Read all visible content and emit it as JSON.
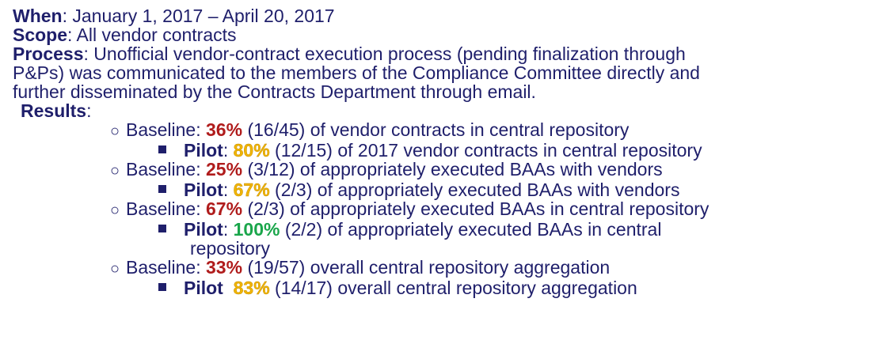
{
  "when": {
    "label": "When",
    "value": ": January 1, 2017 – April 20, 2017"
  },
  "scope": {
    "label": "Scope",
    "value": ": All vendor contracts"
  },
  "process": {
    "label": "Process",
    "line1": ": Unofficial vendor-contract execution process (pending finalization through",
    "line2": "P&Ps) was communicated to the members of the Compliance Committee directly and",
    "line3": "further disseminated by the Contracts Department through email."
  },
  "results": {
    "label": "Results",
    "colon": ":",
    "items": [
      {
        "baseline_label": "Baseline: ",
        "baseline_pct": "36%",
        "baseline_text": " (16/45) of vendor contracts in central repository",
        "pilot_label": "Pilot",
        "pilot_sep": ": ",
        "pilot_pct": "80%",
        "pilot_text": " (12/15) of 2017 vendor contracts in central repository"
      },
      {
        "baseline_label": "Baseline: ",
        "baseline_pct": "25%",
        "baseline_text": " (3/12) of appropriately executed BAAs with vendors",
        "pilot_label": "Pilot",
        "pilot_sep": ": ",
        "pilot_pct": "67%",
        "pilot_text": " (2/3) of appropriately executed BAAs with vendors"
      },
      {
        "baseline_label": "Baseline: ",
        "baseline_pct": "67%",
        "baseline_text": " (2/3) of appropriately executed BAAs in central repository",
        "pilot_label": "Pilot",
        "pilot_sep": ": ",
        "pilot_pct": "100%",
        "pilot_text": " (2/2) of appropriately executed BAAs in central",
        "pilot_text_cont": "repository"
      },
      {
        "baseline_label": "Baseline: ",
        "baseline_pct": "33%",
        "baseline_text": " (19/57) overall central repository aggregation",
        "pilot_label": "Pilot",
        "pilot_sep": "  ",
        "pilot_pct": "83%",
        "pilot_text": " (14/17) overall central repository aggregation"
      }
    ]
  },
  "colors": {
    "text": "#1f1f6b",
    "baseline_pct": "#b01c1c",
    "pilot_pct_amber": "#f0b400",
    "pilot_pct_green": "#1aa64b"
  },
  "icons": {
    "level1_bullet": "hollow-circle-bullet",
    "level2_bullet": "square-bullet"
  }
}
